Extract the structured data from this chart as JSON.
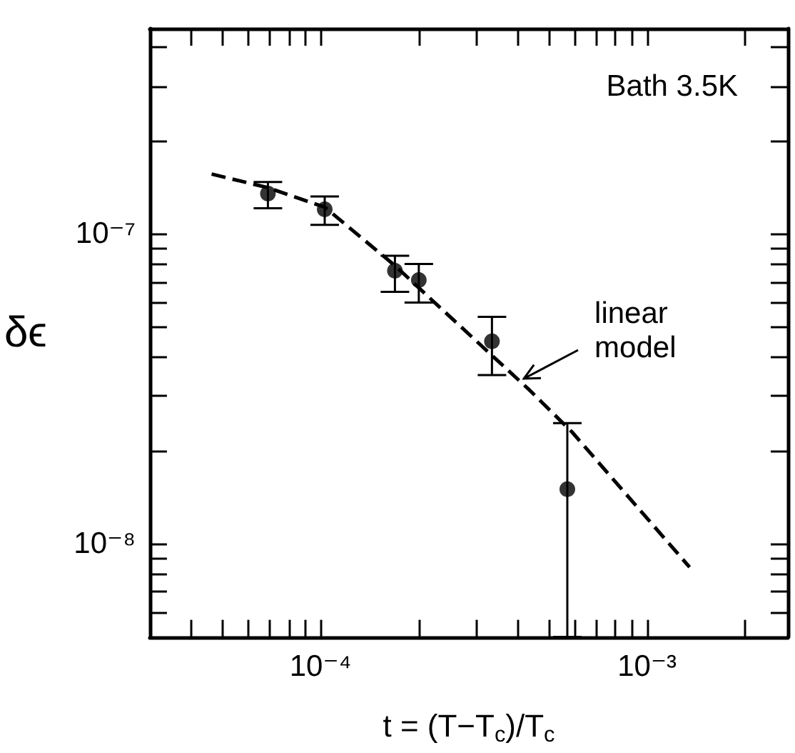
{
  "chart_data": {
    "type": "scatter",
    "xlabel": "t = (T−T$_{c}$)/T$_{c}$",
    "ylabel": "δϵ",
    "annotations": [
      "Bath 3.5K",
      {
        "text": "linear model",
        "x": 0.00042,
        "y": 3.4e-08
      }
    ],
    "log": "xy",
    "grid": false,
    "xlim": [
      3e-05,
      0.0027
    ],
    "ylim": [
      5e-09,
      4.6e-07
    ],
    "xticks": [
      {
        "value": 4e-05,
        "label": null
      },
      {
        "value": 5e-05,
        "label": null
      },
      {
        "value": 6e-05,
        "label": null
      },
      {
        "value": 7e-05,
        "label": null
      },
      {
        "value": 8e-05,
        "label": null
      },
      {
        "value": 9e-05,
        "label": null
      },
      {
        "value": 0.0001,
        "label": "10⁻⁴"
      },
      {
        "value": 0.0002,
        "label": null
      },
      {
        "value": 0.0003,
        "label": null
      },
      {
        "value": 0.0004,
        "label": null
      },
      {
        "value": 0.0005,
        "label": null
      },
      {
        "value": 0.0006,
        "label": null
      },
      {
        "value": 0.0007,
        "label": null
      },
      {
        "value": 0.0008,
        "label": null
      },
      {
        "value": 0.0009,
        "label": null
      },
      {
        "value": 0.001,
        "label": "10⁻³"
      },
      {
        "value": 0.002,
        "label": null
      }
    ],
    "yticks": [
      {
        "value": 6e-09,
        "label": null
      },
      {
        "value": 7e-09,
        "label": null
      },
      {
        "value": 8e-09,
        "label": null
      },
      {
        "value": 9e-09,
        "label": null
      },
      {
        "value": 1e-08,
        "label": "10⁻⁸"
      },
      {
        "value": 2e-08,
        "label": null
      },
      {
        "value": 3e-08,
        "label": null
      },
      {
        "value": 4e-08,
        "label": null
      },
      {
        "value": 5e-08,
        "label": null
      },
      {
        "value": 6e-08,
        "label": null
      },
      {
        "value": 7e-08,
        "label": null
      },
      {
        "value": 8e-08,
        "label": null
      },
      {
        "value": 9e-08,
        "label": null
      },
      {
        "value": 1e-07,
        "label": "10⁻⁷"
      },
      {
        "value": 2e-07,
        "label": null
      },
      {
        "value": 3e-07,
        "label": null
      },
      {
        "value": 4e-07,
        "label": null
      }
    ],
    "series": [
      {
        "color": "#000000",
        "marker": "circle",
        "x": [
          6.9e-05,
          0.000103,
          0.000169,
          0.0002,
          0.000335,
          0.00057
        ],
        "values": [
          1.35e-07,
          1.2e-07,
          7.6e-08,
          7.1e-08,
          4.5e-08,
          1.5e-08
        ],
        "errors": [
          [
            1.21e-07,
            1.47e-07
          ],
          [
            1.07e-07,
            1.32e-07
          ],
          [
            6.5e-08,
            8.5e-08
          ],
          [
            6e-08,
            8e-08
          ],
          [
            3.5e-08,
            5.4e-08
          ],
          [
            5e-09,
            2.45e-08
          ]
        ]
      },
      {
        "type": "line",
        "color": "#000000",
        "line_style": "dashed",
        "marker": "none",
        "x": [
          4.64e-05,
          6.9e-05,
          0.000103,
          0.000169,
          0.00022,
          0.000437,
          0.00059,
          0.00135
        ],
        "values": [
          1.56e-07,
          1.41e-07,
          1.22e-07,
          7.9e-08,
          6.1e-08,
          3.13e-08,
          2.29e-08,
          8.4e-09
        ]
      }
    ]
  }
}
